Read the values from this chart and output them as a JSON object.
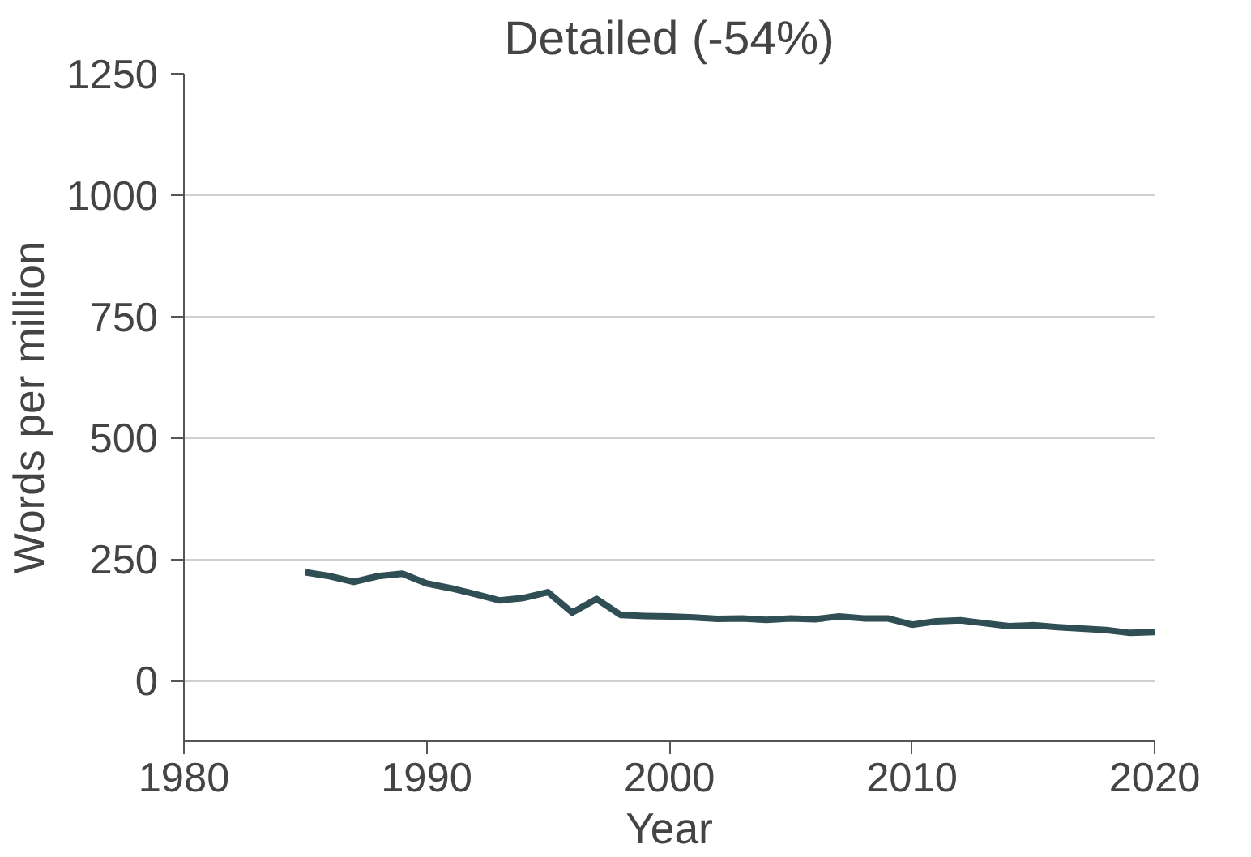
{
  "chart_data": {
    "type": "line",
    "title": "Detailed (-54%)",
    "xlabel": "Year",
    "ylabel": "Words per million",
    "x": [
      1985,
      1986,
      1987,
      1988,
      1989,
      1990,
      1991,
      1992,
      1993,
      1994,
      1995,
      1996,
      1997,
      1998,
      1999,
      2000,
      2001,
      2002,
      2003,
      2004,
      2005,
      2006,
      2007,
      2008,
      2009,
      2010,
      2011,
      2012,
      2013,
      2014,
      2015,
      2016,
      2017,
      2018,
      2019,
      2020
    ],
    "series": [
      {
        "color": "#2f4f55",
        "values": [
          223,
          215,
          203,
          215,
          220,
          200,
          190,
          178,
          165,
          170,
          182,
          140,
          168,
          135,
          133,
          132,
          130,
          127,
          128,
          125,
          128,
          126,
          132,
          128,
          128,
          115,
          122,
          124,
          118,
          112,
          114,
          110,
          107,
          104,
          98,
          100
        ]
      }
    ],
    "xlim": [
      1980,
      2020
    ],
    "xticks": [
      1980,
      1990,
      2000,
      2010,
      2020
    ],
    "ylim": [
      -125,
      1250
    ],
    "yticks": [
      0,
      250,
      500,
      750,
      1000,
      1250
    ],
    "grid": "y",
    "marker": "none",
    "line_style": "solid"
  }
}
